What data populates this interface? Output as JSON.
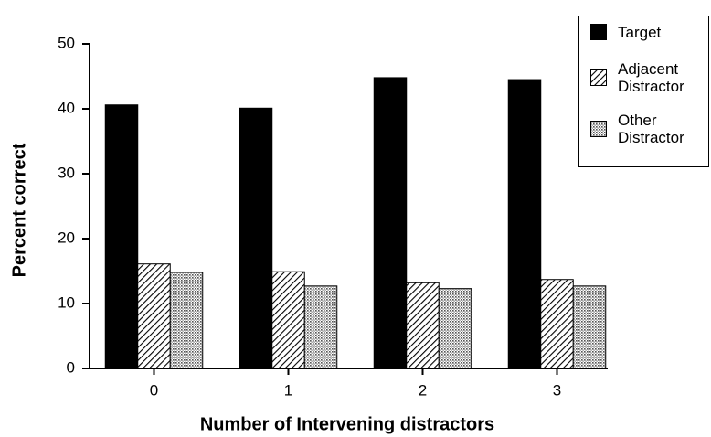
{
  "chart_data": {
    "type": "bar",
    "x_label": "Number of Intervening distractors",
    "y_label": "Percent correct",
    "categories": [
      "0",
      "1",
      "2",
      "3"
    ],
    "series": [
      {
        "name": "Target",
        "color": "#000000",
        "pattern": "solid",
        "values": [
          40.6,
          40.1,
          44.8,
          44.5
        ]
      },
      {
        "name": "Adjacent Distractor",
        "color": "#000000",
        "pattern": "hatch",
        "values": [
          16.1,
          14.9,
          13.2,
          13.7
        ]
      },
      {
        "name": "Other Distractor",
        "color": "#000000",
        "pattern": "dots",
        "values": [
          14.8,
          12.7,
          12.3,
          12.7
        ]
      }
    ],
    "ylim": [
      0,
      50
    ],
    "yticks": [
      0,
      10,
      20,
      30,
      40,
      50
    ],
    "grid": false,
    "legend": "upper right"
  }
}
